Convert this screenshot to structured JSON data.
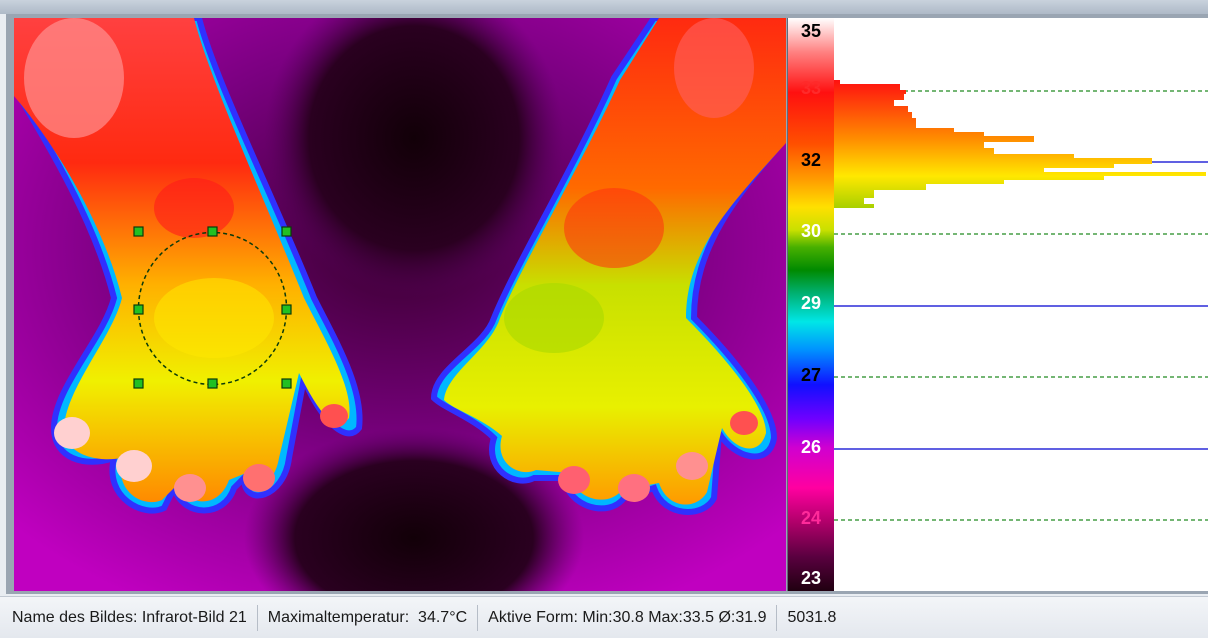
{
  "scale": {
    "labels": [
      {
        "text": "35",
        "color": "#000000"
      },
      {
        "text": "33",
        "color": "#ff2a2a"
      },
      {
        "text": "32",
        "color": "#000000"
      },
      {
        "text": "30",
        "color": "#ffffff"
      },
      {
        "text": "29",
        "color": "#ffffff"
      },
      {
        "text": "27",
        "color": "#000000"
      },
      {
        "text": "26",
        "color": "#ffffff"
      },
      {
        "text": "24",
        "color": "#ff2a9a"
      },
      {
        "text": "23",
        "color": "#ffffff"
      }
    ]
  },
  "selection": {
    "shape": "ellipse"
  },
  "status": {
    "image_name": "Name des Bildes: Infrarot-Bild 21",
    "max_temp": "Maximaltemperatur:  34.7°C",
    "active_shape": "Aktive Form: Min:30.8 Max:33.5 Ø:31.9",
    "value": "5031.8"
  },
  "colors": {
    "grid_dashed": "#228b22",
    "grid_solid": "#2b2bd8",
    "selection_outline": "#0a3a0a",
    "handle_fill": "#22c022"
  }
}
